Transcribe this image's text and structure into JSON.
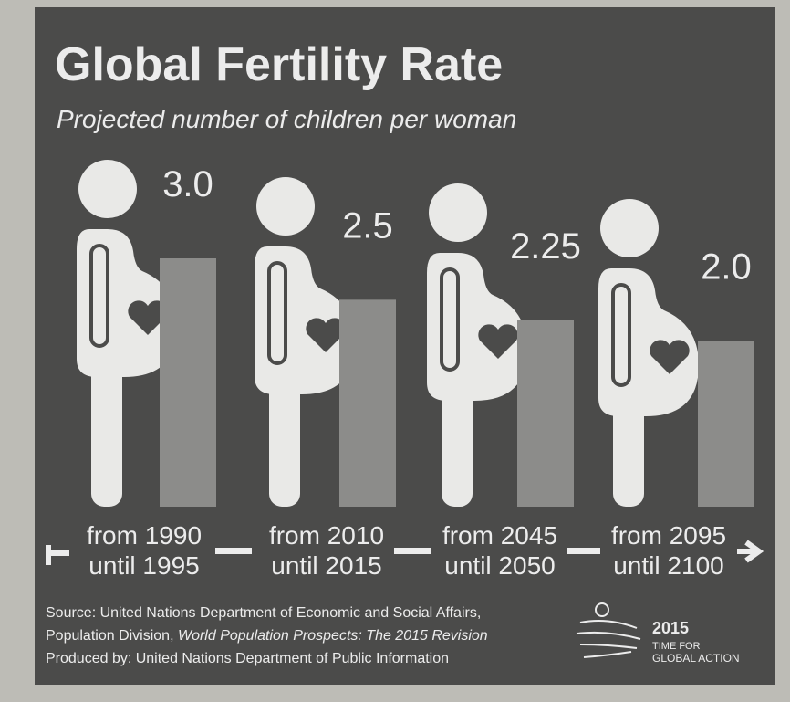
{
  "chart_data": {
    "type": "bar",
    "title": "Global Fertility Rate",
    "subtitle": "Projected number of children per woman",
    "categories": [
      [
        "from 1990",
        "until 1995"
      ],
      [
        "from 2010",
        "until 2015"
      ],
      [
        "from 2045",
        "until 2050"
      ],
      [
        "from 2095",
        "until 2100"
      ]
    ],
    "values": [
      3.0,
      2.5,
      2.25,
      2.0
    ],
    "value_labels": [
      "3.0",
      "2.5",
      "2.25",
      "2.0"
    ],
    "color": "#8c8c8a",
    "figure_color": "#e9e9e7",
    "source": [
      "Source: United Nations Department of Economic and Social Affairs,",
      [
        "Population Division, ",
        "World Population Prospects: The 2015 Revision"
      ],
      "Produced by: United Nations Department of Public Information"
    ],
    "logo": [
      "2015",
      "TIME FOR",
      "GLOBAL ACTION"
    ]
  }
}
